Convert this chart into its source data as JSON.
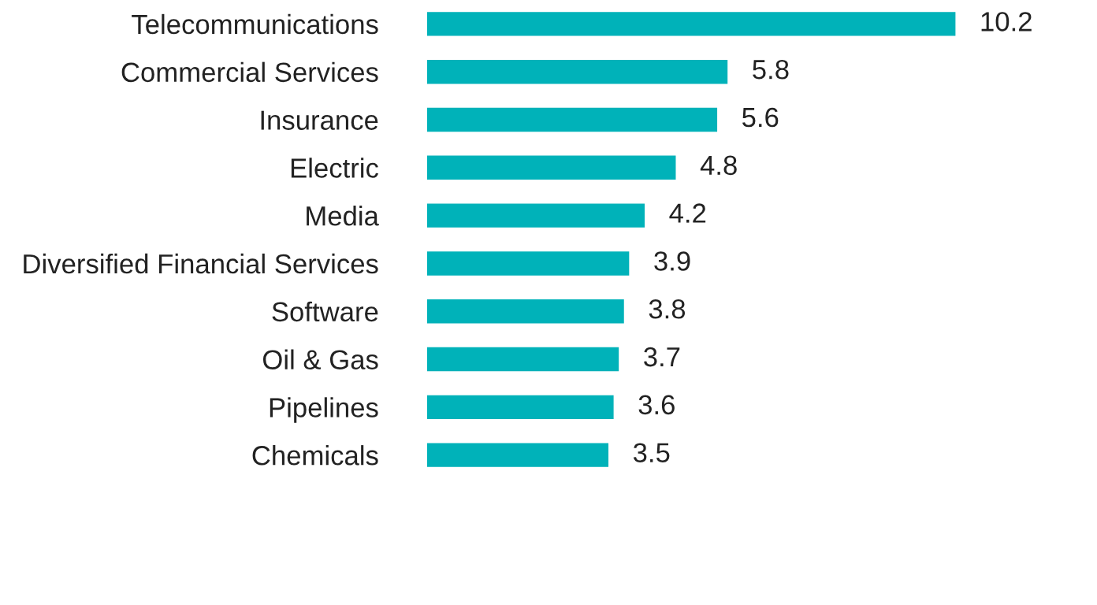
{
  "chart_data": {
    "type": "bar",
    "orientation": "horizontal",
    "categories": [
      "Telecommunications",
      "Commercial Services",
      "Insurance",
      "Electric",
      "Media",
      "Diversified Financial Services",
      "Software",
      "Oil & Gas",
      "Pipelines",
      "Chemicals"
    ],
    "values": [
      10.2,
      5.8,
      5.6,
      4.8,
      4.2,
      3.9,
      3.8,
      3.7,
      3.6,
      3.5
    ],
    "color": "#00b2b9",
    "data_labels": true,
    "grid": false,
    "legend": false,
    "tick_labels": "y"
  }
}
